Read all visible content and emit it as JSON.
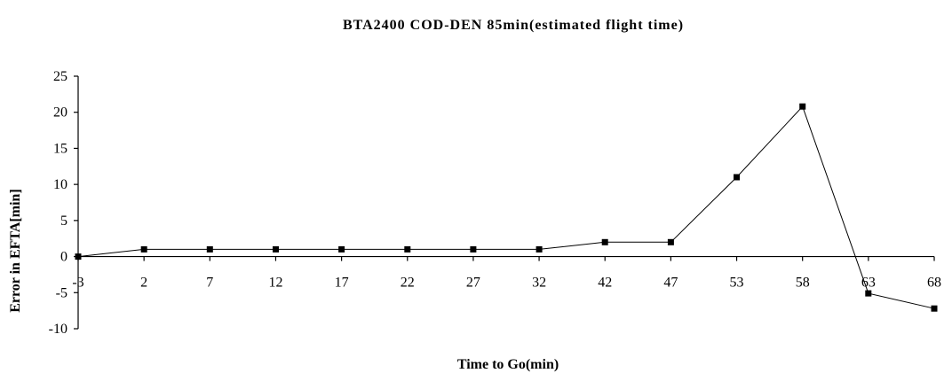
{
  "chart_data": {
    "type": "line",
    "title": "BTA2400 COD-DEN 85min(estimated flight time)",
    "xlabel": "Time to Go(min)",
    "ylabel": "Error in EFTA[min]",
    "categories": [
      "-3",
      "2",
      "7",
      "12",
      "17",
      "22",
      "27",
      "32",
      "42",
      "47",
      "53",
      "58",
      "63",
      "68"
    ],
    "series": [
      {
        "values": [
          0,
          1,
          1,
          1,
          1,
          1,
          1,
          1,
          2,
          2,
          11,
          20.8,
          -5.1,
          -7.2
        ]
      }
    ],
    "ylim": [
      -10,
      25
    ],
    "yticks": [
      -10,
      -5,
      0,
      5,
      10,
      15,
      20,
      25
    ],
    "grid": false,
    "legend": "none",
    "line_color": "#000000",
    "marker": "square"
  }
}
